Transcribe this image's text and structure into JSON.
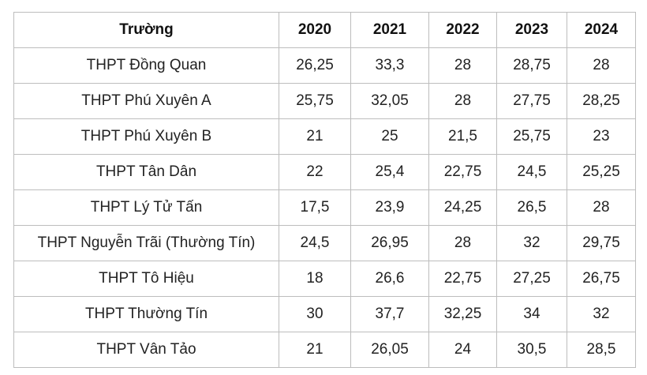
{
  "table": {
    "header": {
      "school": "Trường",
      "years": [
        "2020",
        "2021",
        "2022",
        "2023",
        "2024"
      ]
    },
    "rows": [
      {
        "school": "THPT Đồng Quan",
        "scores": [
          "26,25",
          "33,3",
          "28",
          "28,75",
          "28"
        ]
      },
      {
        "school": "THPT Phú Xuyên A",
        "scores": [
          "25,75",
          "32,05",
          "28",
          "27,75",
          "28,25"
        ]
      },
      {
        "school": "THPT Phú Xuyên B",
        "scores": [
          "21",
          "25",
          "21,5",
          "25,75",
          "23"
        ]
      },
      {
        "school": "THPT Tân Dân",
        "scores": [
          "22",
          "25,4",
          "22,75",
          "24,5",
          "25,25"
        ]
      },
      {
        "school": "THPT Lý Tử Tấn",
        "scores": [
          "17,5",
          "23,9",
          "24,25",
          "26,5",
          "28"
        ]
      },
      {
        "school": "THPT Nguyễn Trãi (Thường Tín)",
        "scores": [
          "24,5",
          "26,95",
          "28",
          "32",
          "29,75"
        ]
      },
      {
        "school": "THPT Tô Hiệu",
        "scores": [
          "18",
          "26,6",
          "22,75",
          "27,25",
          "26,75"
        ]
      },
      {
        "school": "THPT Thường Tín",
        "scores": [
          "30",
          "37,7",
          "32,25",
          "34",
          "32"
        ]
      },
      {
        "school": "THPT Vân Tảo",
        "scores": [
          "21",
          "26,05",
          "24",
          "30,5",
          "28,5"
        ]
      }
    ]
  }
}
